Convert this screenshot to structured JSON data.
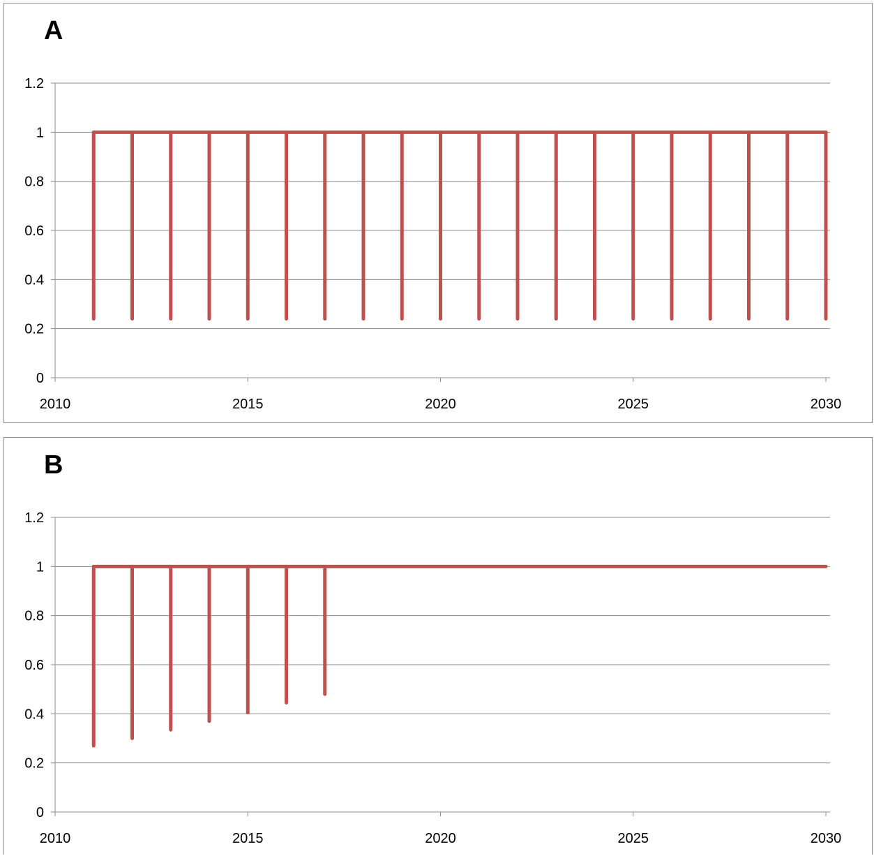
{
  "chart_data": [
    {
      "type": "line",
      "title": "A",
      "x_ticks": [
        "2010",
        "2015",
        "2020",
        "2025",
        "2030"
      ],
      "y_ticks": [
        "0",
        "0.2",
        "0.4",
        "0.6",
        "0.8",
        "1",
        "1.2"
      ],
      "xlim": [
        2010,
        2030
      ],
      "ylim": [
        0,
        1.2
      ],
      "grid": "horizontal",
      "series_color": "#c0504d",
      "baseline": 1,
      "drops": [
        {
          "x": 2011,
          "y": 0.24
        },
        {
          "x": 2012,
          "y": 0.24
        },
        {
          "x": 2013,
          "y": 0.24
        },
        {
          "x": 2014,
          "y": 0.24
        },
        {
          "x": 2015,
          "y": 0.24
        },
        {
          "x": 2016,
          "y": 0.24
        },
        {
          "x": 2017,
          "y": 0.24
        },
        {
          "x": 2018,
          "y": 0.24
        },
        {
          "x": 2019,
          "y": 0.24
        },
        {
          "x": 2020,
          "y": 0.24
        },
        {
          "x": 2021,
          "y": 0.24
        },
        {
          "x": 2022,
          "y": 0.24
        },
        {
          "x": 2023,
          "y": 0.24
        },
        {
          "x": 2024,
          "y": 0.24
        },
        {
          "x": 2025,
          "y": 0.24
        },
        {
          "x": 2026,
          "y": 0.24
        },
        {
          "x": 2027,
          "y": 0.24
        },
        {
          "x": 2028,
          "y": 0.24
        },
        {
          "x": 2029,
          "y": 0.24
        },
        {
          "x": 2030,
          "y": 0.24
        }
      ],
      "line_end": 2030
    },
    {
      "type": "line",
      "title": "B",
      "x_ticks": [
        "2010",
        "2015",
        "2020",
        "2025",
        "2030"
      ],
      "y_ticks": [
        "0",
        "0.2",
        "0.4",
        "0.6",
        "0.8",
        "1",
        "1.2"
      ],
      "xlim": [
        2010,
        2030
      ],
      "ylim": [
        0,
        1.2
      ],
      "grid": "horizontal",
      "series_color": "#c0504d",
      "baseline": 1,
      "drops": [
        {
          "x": 2011,
          "y": 0.27
        },
        {
          "x": 2012,
          "y": 0.3
        },
        {
          "x": 2013,
          "y": 0.335
        },
        {
          "x": 2014,
          "y": 0.37
        },
        {
          "x": 2015,
          "y": 0.405
        },
        {
          "x": 2016,
          "y": 0.445
        },
        {
          "x": 2017,
          "y": 0.48
        }
      ],
      "line_end": 2030
    }
  ]
}
